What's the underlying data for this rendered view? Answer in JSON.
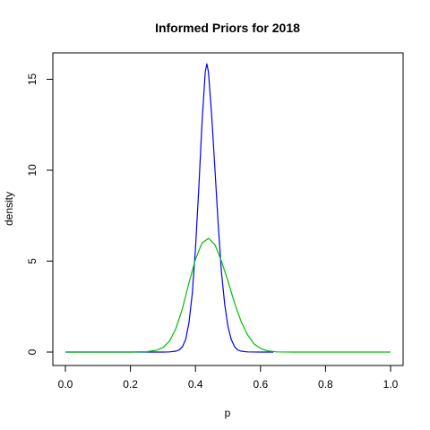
{
  "chart_data": {
    "type": "line",
    "title": "Informed Priors for 2018",
    "xlabel": "p",
    "ylabel": "density",
    "xlim": [
      0,
      1
    ],
    "ylim": [
      0,
      16
    ],
    "xticks": [
      0,
      0.2,
      0.4,
      0.6,
      0.8,
      1
    ],
    "xtick_labels": [
      "0.0",
      "0.2",
      "0.4",
      "0.6",
      "0.8",
      "1.0"
    ],
    "yticks": [
      0,
      5,
      10,
      15
    ],
    "ytick_labels": [
      "0",
      "5",
      "10",
      "15"
    ],
    "grid": false,
    "series": [
      {
        "color": "#0000ff",
        "x": [
          0.0,
          0.25,
          0.3,
          0.32,
          0.34,
          0.35,
          0.36,
          0.37,
          0.38,
          0.39,
          0.4,
          0.41,
          0.42,
          0.43,
          0.435,
          0.44,
          0.45,
          0.46,
          0.47,
          0.48,
          0.49,
          0.5,
          0.51,
          0.52,
          0.53,
          0.54,
          0.56,
          0.6,
          0.64
        ],
        "y": [
          0,
          0,
          0,
          0.01,
          0.05,
          0.12,
          0.3,
          0.7,
          1.6,
          3.2,
          5.7,
          8.9,
          12.6,
          15.4,
          15.85,
          15.4,
          13.0,
          10.0,
          7.0,
          4.4,
          2.6,
          1.4,
          0.7,
          0.3,
          0.12,
          0.05,
          0.01,
          0,
          0
        ]
      },
      {
        "color": "#00c000",
        "x": [
          0.0,
          0.1,
          0.2,
          0.25,
          0.28,
          0.3,
          0.32,
          0.34,
          0.36,
          0.38,
          0.4,
          0.42,
          0.44,
          0.46,
          0.48,
          0.5,
          0.52,
          0.54,
          0.56,
          0.58,
          0.6,
          0.62,
          0.65,
          0.7,
          0.8,
          0.9,
          1.0
        ],
        "y": [
          0,
          0,
          0,
          0.02,
          0.1,
          0.25,
          0.6,
          1.3,
          2.4,
          3.8,
          5.1,
          6.0,
          6.25,
          5.9,
          5.0,
          3.9,
          2.7,
          1.7,
          0.95,
          0.45,
          0.2,
          0.07,
          0.01,
          0,
          0,
          0,
          0
        ]
      }
    ]
  }
}
